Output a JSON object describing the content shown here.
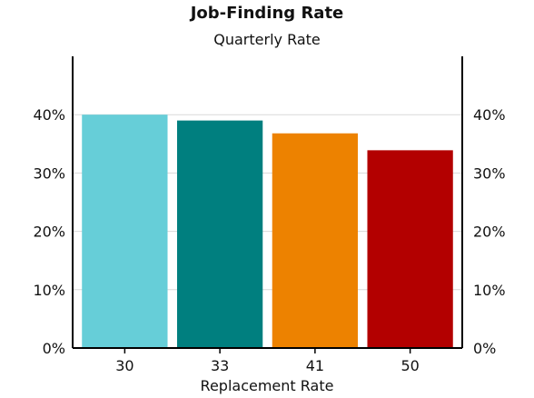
{
  "chart_data": {
    "type": "bar",
    "title": "Job-Finding Rate",
    "subtitle": "Quarterly Rate",
    "xlabel": "Replacement Rate",
    "ylabel": "",
    "categories": [
      "30",
      "33",
      "41",
      "50"
    ],
    "values": [
      0.4,
      0.39,
      0.368,
      0.339
    ],
    "colors": [
      "#66ced8",
      "#007f7f",
      "#ed8200",
      "#b30000"
    ],
    "ylim": [
      0,
      0.5
    ],
    "yticks": [
      0,
      0.1,
      0.2,
      0.3,
      0.4
    ],
    "ytick_labels": [
      "0%",
      "10%",
      "20%",
      "30%",
      "40%"
    ],
    "grid": true,
    "legend": "none"
  }
}
